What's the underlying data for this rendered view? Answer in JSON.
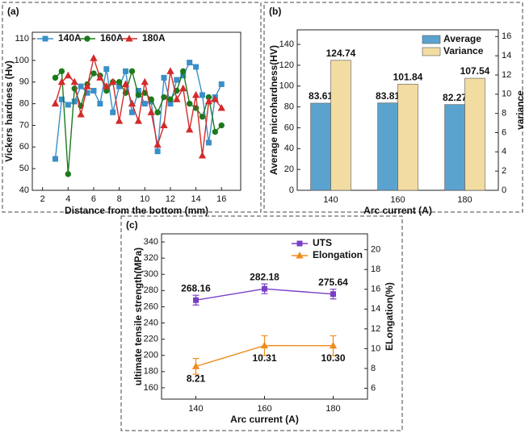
{
  "chart_data": [
    {
      "type": "line",
      "label": "(a)",
      "xlabel": "Distance from the bottom (mm)",
      "ylabel": "Vickers hardness (Hv)",
      "x": [
        3,
        3.5,
        4,
        4.5,
        5,
        5.5,
        6,
        6.5,
        7,
        7.5,
        8,
        8.5,
        9,
        9.5,
        10,
        10.5,
        11,
        11.5,
        12,
        12.5,
        13,
        13.5,
        14,
        14.5,
        15,
        15.5,
        16
      ],
      "xlim": [
        1.2,
        17.5
      ],
      "xticks": [
        2,
        4,
        6,
        8,
        10,
        12,
        14,
        16
      ],
      "ylim": [
        40,
        113
      ],
      "yticks": [
        40,
        50,
        60,
        70,
        80,
        90,
        100,
        110
      ],
      "legend": "top-left",
      "series": [
        {
          "name": "140A",
          "color": "#3a8fc8",
          "marker": "square",
          "values": [
            54.5,
            82,
            79.5,
            81,
            88,
            85,
            86,
            80,
            96,
            76,
            88,
            95,
            76,
            86,
            80,
            81,
            58,
            92,
            80,
            91,
            93,
            99,
            97,
            84,
            62,
            83,
            89
          ]
        },
        {
          "name": "160A",
          "color": "#1c7a1c",
          "marker": "circle",
          "values": [
            92,
            95,
            47.5,
            87,
            79,
            89,
            94,
            93,
            86,
            90,
            90,
            85,
            95,
            84,
            85,
            82,
            76,
            83,
            82,
            86,
            95,
            80,
            78,
            74,
            83,
            67,
            70
          ]
        },
        {
          "name": "180A",
          "color": "#d42a2a",
          "marker": "triangle",
          "values": [
            80,
            90,
            93,
            90,
            75,
            88,
            101,
            92,
            88,
            90,
            72,
            89,
            80,
            72,
            90,
            76,
            61,
            70,
            95,
            82,
            87,
            68,
            84,
            56,
            81,
            82,
            78
          ]
        }
      ]
    },
    {
      "type": "bar",
      "label": "(b)",
      "categories": [
        "140",
        "160",
        "180"
      ],
      "xlabel": "Arc current (A)",
      "ylabel": "Average microhardness(HV)",
      "ylabel_color": "#3d8fd0",
      "y2label": "variance",
      "y2label_color": "#e2bd4e",
      "ylim": [
        0,
        154
      ],
      "yticks": [
        0,
        20,
        40,
        60,
        80,
        100,
        120,
        140
      ],
      "y2lim": [
        0,
        16.7
      ],
      "y2ticks": [
        0,
        2,
        4,
        6,
        8,
        10,
        12,
        14,
        16
      ],
      "legend": "top-right",
      "data_labels": true,
      "series": [
        {
          "name": "Average",
          "color": "#5ba3cf",
          "values": [
            83.61,
            83.81,
            82.27
          ]
        },
        {
          "name": "Variance",
          "color": "#f3dca2",
          "values": [
            124.74,
            101.84,
            107.54
          ]
        }
      ]
    },
    {
      "type": "line",
      "label": "(c)",
      "categories": [
        "140",
        "160",
        "180"
      ],
      "xlabel": "Arc current (A)",
      "ylabel": "ultimate tensile strength(MPa)",
      "ylabel_color": "#8a3fc8",
      "y2label": "ELongation(%)",
      "y2label_color": "#e8902a",
      "ylim": [
        146,
        350
      ],
      "yticks": [
        160,
        180,
        200,
        220,
        240,
        260,
        280,
        300,
        320,
        340
      ],
      "y2lim": [
        4.9,
        21.6
      ],
      "y2ticks": [
        6,
        8,
        10,
        12,
        14,
        16,
        18,
        20
      ],
      "legend": "top-right",
      "data_labels": true,
      "series": [
        {
          "name": "UTS",
          "color": "#7a3fc6",
          "marker": "square",
          "values": [
            268.16,
            282.18,
            275.64
          ],
          "errors": [
            6,
            6,
            6
          ]
        },
        {
          "name": "Elongation",
          "color": "#f08c1e",
          "marker": "triangle",
          "axis": "y2",
          "values": [
            8.21,
            10.31,
            10.3
          ],
          "errors": [
            0.8,
            1.0,
            1.0
          ],
          "value_labels": [
            "8.21",
            "10.31",
            "10.30"
          ]
        }
      ]
    }
  ]
}
